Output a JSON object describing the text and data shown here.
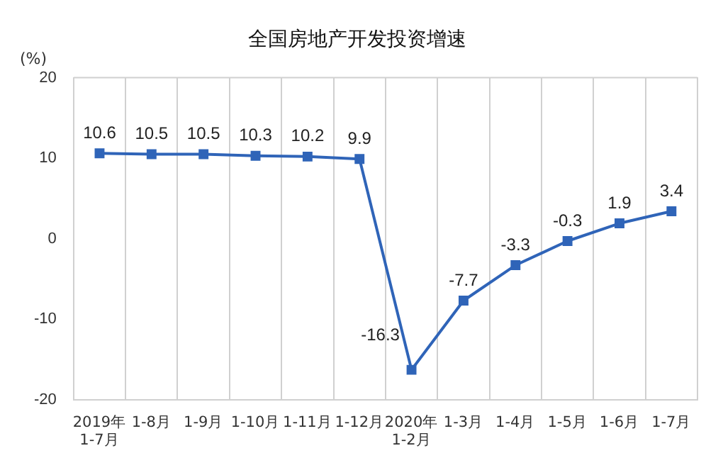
{
  "chart_data": {
    "type": "line",
    "title": "全国房地产开发投资增速",
    "ylabel": "(%)",
    "categories": [
      "2019年 1-7月",
      "1-8月",
      "1-9月",
      "1-10月",
      "1-11月",
      "1-12月",
      "2020年 1-2月",
      "1-3月",
      "1-4月",
      "1-5月",
      "1-6月",
      "1-7月"
    ],
    "series": [
      {
        "color": "#2f64b8",
        "values": [
          10.6,
          10.5,
          10.5,
          10.3,
          10.2,
          9.9,
          -16.3,
          -7.7,
          -3.3,
          -0.3,
          1.9,
          3.4
        ]
      }
    ],
    "ylim": [
      -20,
      20
    ],
    "yticks": [
      -20,
      -10,
      0,
      10,
      20
    ],
    "grid": "x",
    "legend": false,
    "marker": "square",
    "line_style": "solid",
    "data_labels": true
  }
}
